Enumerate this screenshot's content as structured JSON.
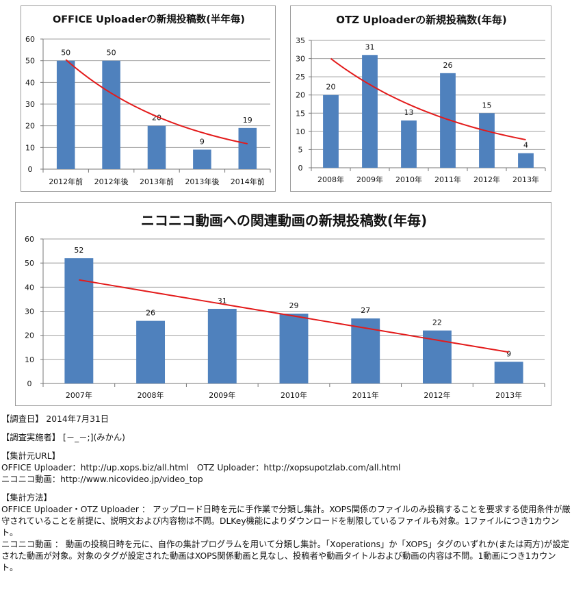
{
  "chart_data": [
    {
      "type": "bar",
      "title": "OFFICE Uploaderの新規投稿数(半年毎)",
      "categories": [
        "2012年前",
        "2012年後",
        "2013年前",
        "2013年後",
        "2014年前"
      ],
      "values": [
        50,
        50,
        20,
        9,
        19
      ],
      "ylim": [
        0,
        60
      ],
      "yticks": [
        0,
        10,
        20,
        30,
        40,
        50,
        60
      ],
      "trendline": {
        "type": "exponential",
        "start": 50.5,
        "end": 11.7
      },
      "colors": {
        "bar": "#4f81bd",
        "trend": "#e31b1b",
        "grid": "#9e9e9e"
      }
    },
    {
      "type": "bar",
      "title": "OTZ Uploaderの新規投稿数(年毎)",
      "categories": [
        "2008年",
        "2009年",
        "2010年",
        "2011年",
        "2012年",
        "2013年"
      ],
      "values": [
        20,
        31,
        13,
        26,
        15,
        4
      ],
      "ylim": [
        0,
        35
      ],
      "yticks": [
        0,
        5,
        10,
        15,
        20,
        25,
        30,
        35
      ],
      "trendline": {
        "type": "exponential",
        "start": 30.0,
        "end": 7.7
      },
      "colors": {
        "bar": "#4f81bd",
        "trend": "#e31b1b",
        "grid": "#9e9e9e"
      }
    },
    {
      "type": "bar",
      "title": "ニコニコ動画への関連動画の新規投稿数(年毎)",
      "categories": [
        "2007年",
        "2008年",
        "2009年",
        "2010年",
        "2011年",
        "2012年",
        "2013年"
      ],
      "values": [
        52,
        26,
        31,
        29,
        27,
        22,
        9
      ],
      "ylim": [
        0,
        60
      ],
      "yticks": [
        0,
        10,
        20,
        30,
        40,
        50,
        60
      ],
      "trendline": {
        "type": "linear",
        "start": 43.0,
        "end": 13.0
      },
      "colors": {
        "bar": "#4f81bd",
        "trend": "#e31b1b",
        "grid": "#9e9e9e"
      }
    }
  ],
  "notes": {
    "survey_date_label": "【調査日】",
    "survey_date_value": "2014年7月31日",
    "surveyor_label": "【調査実施者】",
    "surveyor_value": "[－_－;](みかん)",
    "source_url_label": "【集計元URL】",
    "source_url_line1": "OFFICE Uploader：http://up.xops.biz/all.html　OTZ Uploader：http://xopsupotzlab.com/all.html",
    "source_url_line2": "ニコニコ動画：http://www.nicovideo.jp/video_top",
    "method_label": "【集計方法】",
    "method_text1": "OFFICE Uploader・OTZ Uploader ： アップロード日時を元に手作業で分類し集計。XOPS関係のファイルのみ投稿することを要求する使用条件が厳守されていることを前提に、説明文および内容物は不問。DLKey機能によりダウンロードを制限しているファイルも対象。1ファイルにつき1カウント。",
    "method_text2": "ニコニコ動画 ： 動画の投稿日時を元に、自作の集計プログラムを用いて分類し集計。「Xoperations」か「XOPS」タグのいずれか(または両方)が設定された動画が対象。対象のタグが設定された動画はXOPS関係動画と見なし、投稿者や動画タイトルおよび動画の内容は不問。1動画につき1カウント。"
  }
}
